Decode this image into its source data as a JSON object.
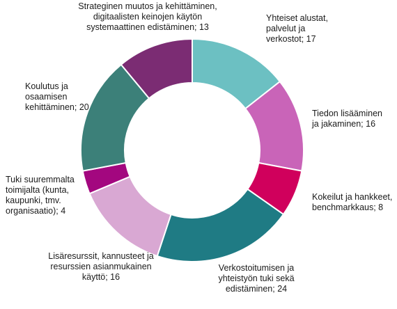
{
  "chart_data": {
    "type": "pie",
    "variant": "donut",
    "legend": "none",
    "slices": [
      {
        "lines": [
          "Yhteiset alustat,",
          "palvelut ja",
          "verkostot; 17"
        ],
        "name": "Yhteiset alustat, palvelut ja verkostot",
        "value": 17,
        "color": "#6cc0c2"
      },
      {
        "lines": [
          "Tiedon lisääminen",
          "ja jakaminen; 16"
        ],
        "name": "Tiedon lisääminen ja jakaminen",
        "value": 16,
        "color": "#c964b8"
      },
      {
        "lines": [
          "Kokeilut ja hankkeet,",
          "benchmarkkaus; 8"
        ],
        "name": "Kokeilut ja hankkeet, benchmarkkaus",
        "value": 8,
        "color": "#d0005c"
      },
      {
        "lines": [
          "Verkostoitumisen ja",
          "yhteistyön tuki sekä",
          "edistäminen; 24"
        ],
        "name": "Verkostoitumisen ja yhteistyön tuki sekä edistäminen",
        "value": 24,
        "color": "#1f7b84"
      },
      {
        "lines": [
          "Lisäresurssit, kannusteet ja",
          "resurssien asianmukainen",
          "käyttö; 16"
        ],
        "name": "Lisäresurssit, kannusteet ja resurssien asianmukainen käyttö",
        "value": 16,
        "color": "#d9a8d3"
      },
      {
        "lines": [
          "Tuki suuremmalta",
          "toimijalta (kunta,",
          "kaupunki, tmv.",
          "organisaatio); 4"
        ],
        "name": "Tuki suuremmalta toimijalta (kunta, kaupunki, tmv. organisaatio)",
        "value": 4,
        "color": "#a3077f"
      },
      {
        "lines": [
          "Koulutus ja",
          "osaamisen",
          "kehittäminen; 20"
        ],
        "name": "Koulutus ja osaamisen kehittäminen",
        "value": 20,
        "color": "#3c8079"
      },
      {
        "lines": [
          "Strateginen muutos ja kehittäminen,",
          "digitaalisten keinojen käytön",
          "systemaattinen edistäminen; 13"
        ],
        "name": "Strateginen muutos ja kehittäminen, digitaalisten keinojen käytön systemaattinen edistäminen",
        "value": 13,
        "color": "#7b2c73"
      }
    ]
  }
}
